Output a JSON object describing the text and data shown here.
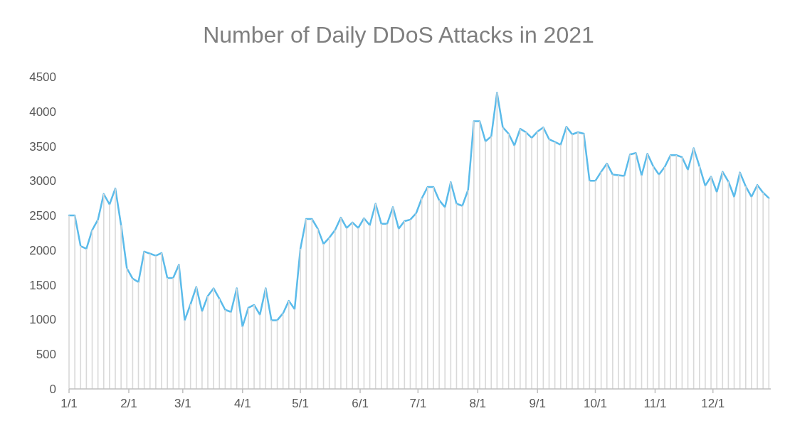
{
  "chart_data": {
    "type": "line",
    "title": "Number of Daily DDoS Attacks in 2021",
    "x": [
      "2021-01-01",
      "2021-01-04",
      "2021-01-07",
      "2021-01-10",
      "2021-01-13",
      "2021-01-16",
      "2021-01-19",
      "2021-01-22",
      "2021-01-25",
      "2021-01-28",
      "2021-01-31",
      "2021-02-03",
      "2021-02-06",
      "2021-02-09",
      "2021-02-12",
      "2021-02-15",
      "2021-02-18",
      "2021-02-21",
      "2021-02-24",
      "2021-02-27",
      "2021-03-02",
      "2021-03-05",
      "2021-03-08",
      "2021-03-11",
      "2021-03-14",
      "2021-03-17",
      "2021-03-20",
      "2021-03-23",
      "2021-03-26",
      "2021-03-29",
      "2021-04-01",
      "2021-04-04",
      "2021-04-07",
      "2021-04-10",
      "2021-04-13",
      "2021-04-16",
      "2021-04-19",
      "2021-04-22",
      "2021-04-25",
      "2021-04-28",
      "2021-05-01",
      "2021-05-04",
      "2021-05-07",
      "2021-05-10",
      "2021-05-13",
      "2021-05-16",
      "2021-05-19",
      "2021-05-22",
      "2021-05-25",
      "2021-05-28",
      "2021-05-31",
      "2021-06-03",
      "2021-06-06",
      "2021-06-09",
      "2021-06-12",
      "2021-06-15",
      "2021-06-18",
      "2021-06-21",
      "2021-06-24",
      "2021-06-27",
      "2021-06-30",
      "2021-07-03",
      "2021-07-06",
      "2021-07-09",
      "2021-07-12",
      "2021-07-15",
      "2021-07-18",
      "2021-07-21",
      "2021-07-24",
      "2021-07-27",
      "2021-07-30",
      "2021-08-02",
      "2021-08-05",
      "2021-08-08",
      "2021-08-11",
      "2021-08-14",
      "2021-08-17",
      "2021-08-20",
      "2021-08-23",
      "2021-08-26",
      "2021-08-29",
      "2021-09-01",
      "2021-09-04",
      "2021-09-07",
      "2021-09-10",
      "2021-09-13",
      "2021-09-16",
      "2021-09-19",
      "2021-09-22",
      "2021-09-25",
      "2021-09-28",
      "2021-10-01",
      "2021-10-04",
      "2021-10-07",
      "2021-10-10",
      "2021-10-13",
      "2021-10-16",
      "2021-10-19",
      "2021-10-22",
      "2021-10-25",
      "2021-10-28",
      "2021-10-31",
      "2021-11-03",
      "2021-11-06",
      "2021-11-09",
      "2021-11-12",
      "2021-11-15",
      "2021-11-18",
      "2021-11-21",
      "2021-11-24",
      "2021-11-27",
      "2021-11-30",
      "2021-12-03",
      "2021-12-06",
      "2021-12-09",
      "2021-12-12",
      "2021-12-15",
      "2021-12-18",
      "2021-12-21",
      "2021-12-24",
      "2021-12-27",
      "2021-12-30"
    ],
    "series": [
      {
        "type": "bar",
        "color": "#d9d9d9",
        "values": [
          2500,
          2500,
          2060,
          2020,
          2290,
          2440,
          2810,
          2660,
          2890,
          2360,
          1740,
          1590,
          1540,
          1980,
          1950,
          1920,
          1960,
          1600,
          1600,
          1790,
          990,
          1220,
          1470,
          1120,
          1340,
          1450,
          1300,
          1140,
          1110,
          1450,
          900,
          1170,
          1210,
          1070,
          1450,
          990,
          990,
          1090,
          1270,
          1150,
          2020,
          2450,
          2450,
          2310,
          2090,
          2180,
          2290,
          2470,
          2320,
          2400,
          2320,
          2460,
          2360,
          2670,
          2380,
          2380,
          2620,
          2310,
          2420,
          2440,
          2530,
          2750,
          2910,
          2910,
          2720,
          2620,
          2980,
          2670,
          2640,
          2870,
          3860,
          3860,
          3570,
          3640,
          4270,
          3770,
          3680,
          3510,
          3750,
          3700,
          3620,
          3710,
          3770,
          3600,
          3560,
          3520,
          3780,
          3670,
          3700,
          3680,
          3000,
          3000,
          3130,
          3250,
          3090,
          3080,
          3070,
          3380,
          3400,
          3080,
          3390,
          3210,
          3090,
          3200,
          3370,
          3370,
          3340,
          3160,
          3470,
          3210,
          2930,
          3060,
          2840,
          3130,
          2990,
          2770,
          3120,
          2920,
          2770,
          2940,
          2830,
          2750
        ]
      },
      {
        "color": "#5bbbea",
        "values": [
          2500,
          2500,
          2060,
          2020,
          2290,
          2440,
          2810,
          2660,
          2890,
          2360,
          1740,
          1590,
          1540,
          1980,
          1950,
          1920,
          1960,
          1600,
          1600,
          1790,
          990,
          1220,
          1470,
          1120,
          1340,
          1450,
          1300,
          1140,
          1110,
          1450,
          900,
          1170,
          1210,
          1070,
          1450,
          990,
          990,
          1090,
          1270,
          1150,
          2020,
          2450,
          2450,
          2310,
          2090,
          2180,
          2290,
          2470,
          2320,
          2400,
          2320,
          2460,
          2360,
          2670,
          2380,
          2380,
          2620,
          2310,
          2420,
          2440,
          2530,
          2750,
          2910,
          2910,
          2720,
          2620,
          2980,
          2670,
          2640,
          2870,
          3860,
          3860,
          3570,
          3640,
          4270,
          3770,
          3680,
          3510,
          3750,
          3700,
          3620,
          3710,
          3770,
          3600,
          3560,
          3520,
          3780,
          3670,
          3700,
          3680,
          3000,
          3000,
          3130,
          3250,
          3090,
          3080,
          3070,
          3380,
          3400,
          3080,
          3390,
          3210,
          3090,
          3200,
          3370,
          3370,
          3340,
          3160,
          3470,
          3210,
          2930,
          3060,
          2840,
          3130,
          2990,
          2770,
          3120,
          2920,
          2770,
          2940,
          2830,
          2750
        ]
      }
    ],
    "xlim": [
      "2021-01-01",
      "2021-12-31"
    ],
    "xticks": [
      {
        "value": "2021-01-01",
        "label": "1/1"
      },
      {
        "value": "2021-02-01",
        "label": "2/1"
      },
      {
        "value": "2021-03-01",
        "label": "3/1"
      },
      {
        "value": "2021-04-01",
        "label": "4/1"
      },
      {
        "value": "2021-05-01",
        "label": "5/1"
      },
      {
        "value": "2021-06-01",
        "label": "6/1"
      },
      {
        "value": "2021-07-01",
        "label": "7/1"
      },
      {
        "value": "2021-08-01",
        "label": "8/1"
      },
      {
        "value": "2021-09-01",
        "label": "9/1"
      },
      {
        "value": "2021-10-01",
        "label": "10/1"
      },
      {
        "value": "2021-11-01",
        "label": "11/1"
      },
      {
        "value": "2021-12-01",
        "label": "12/1"
      }
    ],
    "ylim": [
      0,
      4500
    ],
    "yticks": [
      0,
      500,
      1000,
      1500,
      2000,
      2500,
      3000,
      3500,
      4000,
      4500
    ],
    "grid": false,
    "marker": "none",
    "line_style": "solid"
  }
}
